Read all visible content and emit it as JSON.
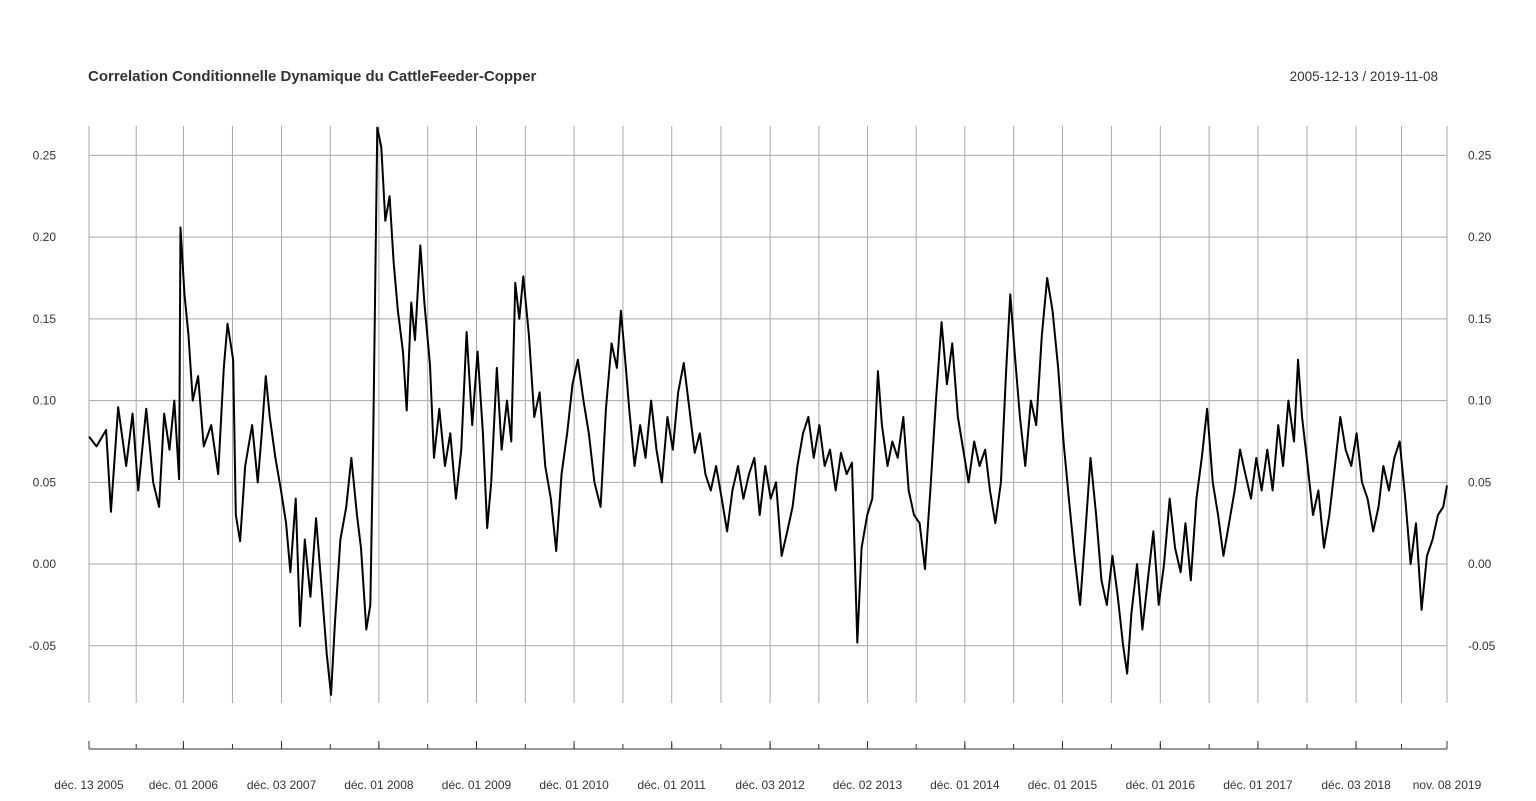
{
  "chart_data": {
    "type": "line",
    "title": "Correlation Conditionnelle Dynamique du CattleFeeder-Copper",
    "date_range": "2005-12-13 / 2019-11-08",
    "xlabel": "",
    "ylabel": "",
    "x_start": "2005-12-13",
    "x_end": "2019-11-08",
    "ylim": [
      -0.085,
      0.268
    ],
    "yticks": [
      -0.05,
      0.0,
      0.05,
      0.1,
      0.15,
      0.2,
      0.25
    ],
    "ytick_labels": [
      "-0.05",
      "0.00",
      "0.05",
      "0.10",
      "0.15",
      "0.20",
      "0.25"
    ],
    "xticks": [
      {
        "date": "2005-12-13",
        "label": "déc. 13 2005"
      },
      {
        "date": "2006-12-01",
        "label": "déc. 01 2006"
      },
      {
        "date": "2007-12-03",
        "label": "déc. 03 2007"
      },
      {
        "date": "2008-12-01",
        "label": "déc. 01 2008"
      },
      {
        "date": "2009-12-01",
        "label": "déc. 01 2009"
      },
      {
        "date": "2010-12-01",
        "label": "déc. 01 2010"
      },
      {
        "date": "2011-12-01",
        "label": "déc. 01 2011"
      },
      {
        "date": "2012-12-03",
        "label": "déc. 03 2012"
      },
      {
        "date": "2013-12-02",
        "label": "déc. 02 2013"
      },
      {
        "date": "2014-12-01",
        "label": "déc. 01 2014"
      },
      {
        "date": "2015-12-01",
        "label": "déc. 01 2015"
      },
      {
        "date": "2016-12-01",
        "label": "déc. 01 2016"
      },
      {
        "date": "2017-12-01",
        "label": "déc. 01 2017"
      },
      {
        "date": "2018-12-03",
        "label": "déc. 03 2018"
      },
      {
        "date": "2019-11-08",
        "label": "nov. 08 2019"
      }
    ],
    "series": [
      {
        "color": "#000000",
        "points": [
          [
            "2005-12-13",
            0.078
          ],
          [
            "2006-01-10",
            0.072
          ],
          [
            "2006-02-15",
            0.082
          ],
          [
            "2006-03-05",
            0.032
          ],
          [
            "2006-04-01",
            0.096
          ],
          [
            "2006-05-01",
            0.06
          ],
          [
            "2006-05-25",
            0.092
          ],
          [
            "2006-06-15",
            0.045
          ],
          [
            "2006-07-15",
            0.095
          ],
          [
            "2006-08-10",
            0.05
          ],
          [
            "2006-09-01",
            0.035
          ],
          [
            "2006-09-20",
            0.092
          ],
          [
            "2006-10-10",
            0.07
          ],
          [
            "2006-10-28",
            0.1
          ],
          [
            "2006-11-15",
            0.052
          ],
          [
            "2006-11-20",
            0.206
          ],
          [
            "2006-12-05",
            0.165
          ],
          [
            "2006-12-20",
            0.14
          ],
          [
            "2007-01-05",
            0.1
          ],
          [
            "2007-01-25",
            0.115
          ],
          [
            "2007-02-15",
            0.072
          ],
          [
            "2007-03-15",
            0.085
          ],
          [
            "2007-04-10",
            0.055
          ],
          [
            "2007-05-01",
            0.12
          ],
          [
            "2007-05-15",
            0.147
          ],
          [
            "2007-06-05",
            0.125
          ],
          [
            "2007-06-15",
            0.03
          ],
          [
            "2007-07-01",
            0.014
          ],
          [
            "2007-07-20",
            0.06
          ],
          [
            "2007-08-15",
            0.085
          ],
          [
            "2007-09-05",
            0.05
          ],
          [
            "2007-09-20",
            0.08
          ],
          [
            "2007-10-05",
            0.115
          ],
          [
            "2007-10-20",
            0.09
          ],
          [
            "2007-11-10",
            0.065
          ],
          [
            "2007-12-01",
            0.045
          ],
          [
            "2007-12-20",
            0.025
          ],
          [
            "2008-01-05",
            -0.005
          ],
          [
            "2008-01-25",
            0.04
          ],
          [
            "2008-02-10",
            -0.038
          ],
          [
            "2008-02-28",
            0.015
          ],
          [
            "2008-03-20",
            -0.02
          ],
          [
            "2008-04-10",
            0.028
          ],
          [
            "2008-05-01",
            -0.015
          ],
          [
            "2008-05-20",
            -0.055
          ],
          [
            "2008-06-05",
            -0.08
          ],
          [
            "2008-06-20",
            -0.035
          ],
          [
            "2008-07-10",
            0.015
          ],
          [
            "2008-08-01",
            0.035
          ],
          [
            "2008-08-20",
            0.065
          ],
          [
            "2008-09-10",
            0.03
          ],
          [
            "2008-09-25",
            0.01
          ],
          [
            "2008-10-15",
            -0.04
          ],
          [
            "2008-10-30",
            -0.025
          ],
          [
            "2008-11-10",
            0.08
          ],
          [
            "2008-11-25",
            0.267
          ],
          [
            "2008-12-10",
            0.255
          ],
          [
            "2008-12-25",
            0.21
          ],
          [
            "2009-01-10",
            0.225
          ],
          [
            "2009-01-25",
            0.185
          ],
          [
            "2009-02-10",
            0.155
          ],
          [
            "2009-03-01",
            0.13
          ],
          [
            "2009-03-15",
            0.094
          ],
          [
            "2009-04-01",
            0.16
          ],
          [
            "2009-04-15",
            0.137
          ],
          [
            "2009-05-05",
            0.195
          ],
          [
            "2009-05-20",
            0.16
          ],
          [
            "2009-06-10",
            0.122
          ],
          [
            "2009-06-25",
            0.065
          ],
          [
            "2009-07-15",
            0.095
          ],
          [
            "2009-08-05",
            0.06
          ],
          [
            "2009-08-25",
            0.08
          ],
          [
            "2009-09-15",
            0.04
          ],
          [
            "2009-10-05",
            0.07
          ],
          [
            "2009-10-25",
            0.142
          ],
          [
            "2009-11-15",
            0.085
          ],
          [
            "2009-12-05",
            0.13
          ],
          [
            "2009-12-25",
            0.08
          ],
          [
            "2010-01-10",
            0.022
          ],
          [
            "2010-01-25",
            0.05
          ],
          [
            "2010-02-15",
            0.12
          ],
          [
            "2010-03-05",
            0.07
          ],
          [
            "2010-03-25",
            0.1
          ],
          [
            "2010-04-10",
            0.075
          ],
          [
            "2010-04-25",
            0.172
          ],
          [
            "2010-05-10",
            0.15
          ],
          [
            "2010-05-25",
            0.176
          ],
          [
            "2010-06-15",
            0.14
          ],
          [
            "2010-07-05",
            0.09
          ],
          [
            "2010-07-25",
            0.105
          ],
          [
            "2010-08-15",
            0.06
          ],
          [
            "2010-09-05",
            0.04
          ],
          [
            "2010-09-25",
            0.008
          ],
          [
            "2010-10-15",
            0.055
          ],
          [
            "2010-11-05",
            0.08
          ],
          [
            "2010-11-25",
            0.11
          ],
          [
            "2010-12-15",
            0.125
          ],
          [
            "2011-01-05",
            0.1
          ],
          [
            "2011-01-25",
            0.08
          ],
          [
            "2011-02-15",
            0.05
          ],
          [
            "2011-03-10",
            0.035
          ],
          [
            "2011-03-30",
            0.095
          ],
          [
            "2011-04-20",
            0.135
          ],
          [
            "2011-05-10",
            0.12
          ],
          [
            "2011-05-25",
            0.155
          ],
          [
            "2011-06-10",
            0.125
          ],
          [
            "2011-06-25",
            0.095
          ],
          [
            "2011-07-15",
            0.06
          ],
          [
            "2011-08-05",
            0.085
          ],
          [
            "2011-08-25",
            0.065
          ],
          [
            "2011-09-15",
            0.1
          ],
          [
            "2011-10-05",
            0.07
          ],
          [
            "2011-10-25",
            0.05
          ],
          [
            "2011-11-15",
            0.09
          ],
          [
            "2011-12-05",
            0.07
          ],
          [
            "2011-12-25",
            0.105
          ],
          [
            "2012-01-15",
            0.123
          ],
          [
            "2012-02-05",
            0.095
          ],
          [
            "2012-02-25",
            0.068
          ],
          [
            "2012-03-15",
            0.08
          ],
          [
            "2012-04-05",
            0.055
          ],
          [
            "2012-04-25",
            0.045
          ],
          [
            "2012-05-15",
            0.06
          ],
          [
            "2012-06-05",
            0.04
          ],
          [
            "2012-06-25",
            0.02
          ],
          [
            "2012-07-15",
            0.045
          ],
          [
            "2012-08-05",
            0.06
          ],
          [
            "2012-08-25",
            0.04
          ],
          [
            "2012-09-15",
            0.055
          ],
          [
            "2012-10-05",
            0.065
          ],
          [
            "2012-10-25",
            0.03
          ],
          [
            "2012-11-15",
            0.06
          ],
          [
            "2012-12-05",
            0.04
          ],
          [
            "2012-12-25",
            0.05
          ],
          [
            "2013-01-15",
            0.005
          ],
          [
            "2013-02-05",
            0.02
          ],
          [
            "2013-02-25",
            0.035
          ],
          [
            "2013-03-15",
            0.06
          ],
          [
            "2013-04-05",
            0.08
          ],
          [
            "2013-04-25",
            0.09
          ],
          [
            "2013-05-15",
            0.065
          ],
          [
            "2013-06-05",
            0.085
          ],
          [
            "2013-06-25",
            0.06
          ],
          [
            "2013-07-15",
            0.07
          ],
          [
            "2013-08-05",
            0.045
          ],
          [
            "2013-08-25",
            0.068
          ],
          [
            "2013-09-15",
            0.055
          ],
          [
            "2013-10-05",
            0.062
          ],
          [
            "2013-10-25",
            -0.048
          ],
          [
            "2013-11-10",
            0.01
          ],
          [
            "2013-12-01",
            0.03
          ],
          [
            "2013-12-20",
            0.04
          ],
          [
            "2014-01-10",
            0.118
          ],
          [
            "2014-01-25",
            0.085
          ],
          [
            "2014-02-15",
            0.06
          ],
          [
            "2014-03-05",
            0.075
          ],
          [
            "2014-03-25",
            0.065
          ],
          [
            "2014-04-15",
            0.09
          ],
          [
            "2014-05-05",
            0.045
          ],
          [
            "2014-05-25",
            0.03
          ],
          [
            "2014-06-15",
            0.025
          ],
          [
            "2014-07-05",
            -0.003
          ],
          [
            "2014-07-25",
            0.045
          ],
          [
            "2014-08-15",
            0.1
          ],
          [
            "2014-09-05",
            0.148
          ],
          [
            "2014-09-25",
            0.11
          ],
          [
            "2014-10-15",
            0.135
          ],
          [
            "2014-11-05",
            0.09
          ],
          [
            "2014-11-25",
            0.07
          ],
          [
            "2014-12-15",
            0.05
          ],
          [
            "2015-01-05",
            0.075
          ],
          [
            "2015-01-25",
            0.06
          ],
          [
            "2015-02-15",
            0.07
          ],
          [
            "2015-03-05",
            0.045
          ],
          [
            "2015-03-25",
            0.025
          ],
          [
            "2015-04-15",
            0.05
          ],
          [
            "2015-05-05",
            0.12
          ],
          [
            "2015-05-20",
            0.165
          ],
          [
            "2015-06-05",
            0.13
          ],
          [
            "2015-06-25",
            0.09
          ],
          [
            "2015-07-15",
            0.06
          ],
          [
            "2015-08-05",
            0.1
          ],
          [
            "2015-08-25",
            0.085
          ],
          [
            "2015-09-15",
            0.14
          ],
          [
            "2015-10-05",
            0.175
          ],
          [
            "2015-10-25",
            0.155
          ],
          [
            "2015-11-15",
            0.12
          ],
          [
            "2015-12-05",
            0.075
          ],
          [
            "2015-12-25",
            0.04
          ],
          [
            "2016-01-15",
            0.005
          ],
          [
            "2016-02-05",
            -0.025
          ],
          [
            "2016-02-25",
            0.02
          ],
          [
            "2016-03-15",
            0.065
          ],
          [
            "2016-04-05",
            0.03
          ],
          [
            "2016-04-25",
            -0.01
          ],
          [
            "2016-05-15",
            -0.025
          ],
          [
            "2016-06-05",
            0.005
          ],
          [
            "2016-06-25",
            -0.02
          ],
          [
            "2016-07-15",
            -0.05
          ],
          [
            "2016-07-30",
            -0.067
          ],
          [
            "2016-08-15",
            -0.03
          ],
          [
            "2016-09-05",
            0.0
          ],
          [
            "2016-09-25",
            -0.04
          ],
          [
            "2016-10-15",
            -0.01
          ],
          [
            "2016-11-05",
            0.02
          ],
          [
            "2016-11-25",
            -0.025
          ],
          [
            "2016-12-15",
            0.0
          ],
          [
            "2017-01-05",
            0.04
          ],
          [
            "2017-01-25",
            0.01
          ],
          [
            "2017-02-15",
            -0.005
          ],
          [
            "2017-03-05",
            0.025
          ],
          [
            "2017-03-25",
            -0.01
          ],
          [
            "2017-04-15",
            0.04
          ],
          [
            "2017-05-05",
            0.065
          ],
          [
            "2017-05-25",
            0.095
          ],
          [
            "2017-06-15",
            0.05
          ],
          [
            "2017-07-05",
            0.03
          ],
          [
            "2017-07-25",
            0.005
          ],
          [
            "2017-08-15",
            0.025
          ],
          [
            "2017-09-05",
            0.045
          ],
          [
            "2017-09-25",
            0.07
          ],
          [
            "2017-10-15",
            0.055
          ],
          [
            "2017-11-05",
            0.04
          ],
          [
            "2017-11-25",
            0.065
          ],
          [
            "2017-12-15",
            0.045
          ],
          [
            "2018-01-05",
            0.07
          ],
          [
            "2018-01-25",
            0.045
          ],
          [
            "2018-02-15",
            0.085
          ],
          [
            "2018-03-05",
            0.06
          ],
          [
            "2018-03-25",
            0.1
          ],
          [
            "2018-04-15",
            0.075
          ],
          [
            "2018-04-30",
            0.125
          ],
          [
            "2018-05-15",
            0.09
          ],
          [
            "2018-06-05",
            0.06
          ],
          [
            "2018-06-25",
            0.03
          ],
          [
            "2018-07-15",
            0.045
          ],
          [
            "2018-08-05",
            0.01
          ],
          [
            "2018-08-25",
            0.03
          ],
          [
            "2018-09-15",
            0.06
          ],
          [
            "2018-10-05",
            0.09
          ],
          [
            "2018-10-25",
            0.07
          ],
          [
            "2018-11-15",
            0.06
          ],
          [
            "2018-12-05",
            0.08
          ],
          [
            "2018-12-25",
            0.05
          ],
          [
            "2019-01-15",
            0.04
          ],
          [
            "2019-02-05",
            0.02
          ],
          [
            "2019-02-25",
            0.035
          ],
          [
            "2019-03-15",
            0.06
          ],
          [
            "2019-04-05",
            0.045
          ],
          [
            "2019-04-25",
            0.065
          ],
          [
            "2019-05-15",
            0.075
          ],
          [
            "2019-06-05",
            0.04
          ],
          [
            "2019-06-25",
            0.0
          ],
          [
            "2019-07-15",
            0.025
          ],
          [
            "2019-08-05",
            -0.028
          ],
          [
            "2019-08-25",
            0.005
          ],
          [
            "2019-09-15",
            0.015
          ],
          [
            "2019-10-05",
            0.03
          ],
          [
            "2019-10-25",
            0.035
          ],
          [
            "2019-11-08",
            0.048
          ]
        ]
      }
    ],
    "grid": true,
    "legend": "none"
  }
}
